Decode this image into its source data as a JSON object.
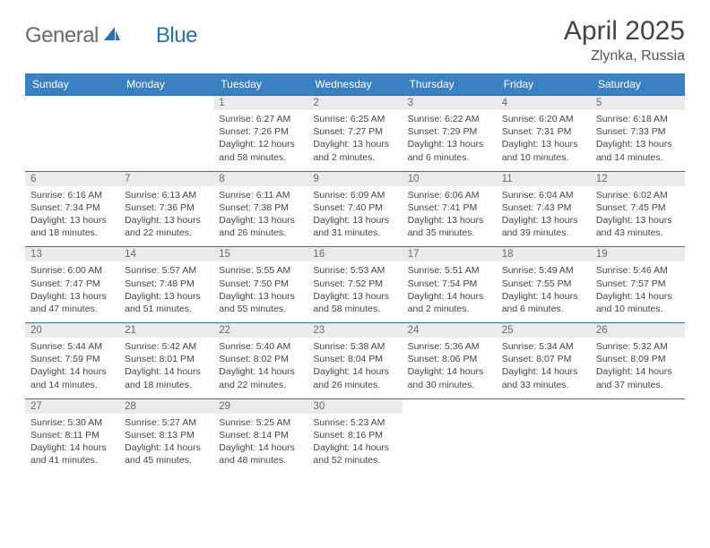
{
  "brand": {
    "part1": "General",
    "part2": "Blue"
  },
  "title": "April 2025",
  "location": "Zlynka, Russia",
  "colors": {
    "header_bg": "#3a81c4",
    "header_text": "#ffffff",
    "row_border": "#2f6fae",
    "daynum_bg": "#ebebeb",
    "daynum_text": "#6a6a6a",
    "body_text": "#444444",
    "page_bg": "#ffffff",
    "logo_gray": "#6a6a6a",
    "logo_blue": "#2f6fae"
  },
  "typography": {
    "title_fontsize": 30,
    "location_fontsize": 16,
    "dow_fontsize": 12,
    "daynum_fontsize": 11.5,
    "body_fontsize": 10.5,
    "logo_fontsize": 24
  },
  "days_of_week": [
    "Sunday",
    "Monday",
    "Tuesday",
    "Wednesday",
    "Thursday",
    "Friday",
    "Saturday"
  ],
  "weeks": [
    [
      null,
      null,
      {
        "n": "1",
        "sr": "Sunrise: 6:27 AM",
        "ss": "Sunset: 7:26 PM",
        "dl1": "Daylight: 12 hours",
        "dl2": "and 58 minutes."
      },
      {
        "n": "2",
        "sr": "Sunrise: 6:25 AM",
        "ss": "Sunset: 7:27 PM",
        "dl1": "Daylight: 13 hours",
        "dl2": "and 2 minutes."
      },
      {
        "n": "3",
        "sr": "Sunrise: 6:22 AM",
        "ss": "Sunset: 7:29 PM",
        "dl1": "Daylight: 13 hours",
        "dl2": "and 6 minutes."
      },
      {
        "n": "4",
        "sr": "Sunrise: 6:20 AM",
        "ss": "Sunset: 7:31 PM",
        "dl1": "Daylight: 13 hours",
        "dl2": "and 10 minutes."
      },
      {
        "n": "5",
        "sr": "Sunrise: 6:18 AM",
        "ss": "Sunset: 7:33 PM",
        "dl1": "Daylight: 13 hours",
        "dl2": "and 14 minutes."
      }
    ],
    [
      {
        "n": "6",
        "sr": "Sunrise: 6:16 AM",
        "ss": "Sunset: 7:34 PM",
        "dl1": "Daylight: 13 hours",
        "dl2": "and 18 minutes."
      },
      {
        "n": "7",
        "sr": "Sunrise: 6:13 AM",
        "ss": "Sunset: 7:36 PM",
        "dl1": "Daylight: 13 hours",
        "dl2": "and 22 minutes."
      },
      {
        "n": "8",
        "sr": "Sunrise: 6:11 AM",
        "ss": "Sunset: 7:38 PM",
        "dl1": "Daylight: 13 hours",
        "dl2": "and 26 minutes."
      },
      {
        "n": "9",
        "sr": "Sunrise: 6:09 AM",
        "ss": "Sunset: 7:40 PM",
        "dl1": "Daylight: 13 hours",
        "dl2": "and 31 minutes."
      },
      {
        "n": "10",
        "sr": "Sunrise: 6:06 AM",
        "ss": "Sunset: 7:41 PM",
        "dl1": "Daylight: 13 hours",
        "dl2": "and 35 minutes."
      },
      {
        "n": "11",
        "sr": "Sunrise: 6:04 AM",
        "ss": "Sunset: 7:43 PM",
        "dl1": "Daylight: 13 hours",
        "dl2": "and 39 minutes."
      },
      {
        "n": "12",
        "sr": "Sunrise: 6:02 AM",
        "ss": "Sunset: 7:45 PM",
        "dl1": "Daylight: 13 hours",
        "dl2": "and 43 minutes."
      }
    ],
    [
      {
        "n": "13",
        "sr": "Sunrise: 6:00 AM",
        "ss": "Sunset: 7:47 PM",
        "dl1": "Daylight: 13 hours",
        "dl2": "and 47 minutes."
      },
      {
        "n": "14",
        "sr": "Sunrise: 5:57 AM",
        "ss": "Sunset: 7:48 PM",
        "dl1": "Daylight: 13 hours",
        "dl2": "and 51 minutes."
      },
      {
        "n": "15",
        "sr": "Sunrise: 5:55 AM",
        "ss": "Sunset: 7:50 PM",
        "dl1": "Daylight: 13 hours",
        "dl2": "and 55 minutes."
      },
      {
        "n": "16",
        "sr": "Sunrise: 5:53 AM",
        "ss": "Sunset: 7:52 PM",
        "dl1": "Daylight: 13 hours",
        "dl2": "and 58 minutes."
      },
      {
        "n": "17",
        "sr": "Sunrise: 5:51 AM",
        "ss": "Sunset: 7:54 PM",
        "dl1": "Daylight: 14 hours",
        "dl2": "and 2 minutes."
      },
      {
        "n": "18",
        "sr": "Sunrise: 5:49 AM",
        "ss": "Sunset: 7:55 PM",
        "dl1": "Daylight: 14 hours",
        "dl2": "and 6 minutes."
      },
      {
        "n": "19",
        "sr": "Sunrise: 5:46 AM",
        "ss": "Sunset: 7:57 PM",
        "dl1": "Daylight: 14 hours",
        "dl2": "and 10 minutes."
      }
    ],
    [
      {
        "n": "20",
        "sr": "Sunrise: 5:44 AM",
        "ss": "Sunset: 7:59 PM",
        "dl1": "Daylight: 14 hours",
        "dl2": "and 14 minutes."
      },
      {
        "n": "21",
        "sr": "Sunrise: 5:42 AM",
        "ss": "Sunset: 8:01 PM",
        "dl1": "Daylight: 14 hours",
        "dl2": "and 18 minutes."
      },
      {
        "n": "22",
        "sr": "Sunrise: 5:40 AM",
        "ss": "Sunset: 8:02 PM",
        "dl1": "Daylight: 14 hours",
        "dl2": "and 22 minutes."
      },
      {
        "n": "23",
        "sr": "Sunrise: 5:38 AM",
        "ss": "Sunset: 8:04 PM",
        "dl1": "Daylight: 14 hours",
        "dl2": "and 26 minutes."
      },
      {
        "n": "24",
        "sr": "Sunrise: 5:36 AM",
        "ss": "Sunset: 8:06 PM",
        "dl1": "Daylight: 14 hours",
        "dl2": "and 30 minutes."
      },
      {
        "n": "25",
        "sr": "Sunrise: 5:34 AM",
        "ss": "Sunset: 8:07 PM",
        "dl1": "Daylight: 14 hours",
        "dl2": "and 33 minutes."
      },
      {
        "n": "26",
        "sr": "Sunrise: 5:32 AM",
        "ss": "Sunset: 8:09 PM",
        "dl1": "Daylight: 14 hours",
        "dl2": "and 37 minutes."
      }
    ],
    [
      {
        "n": "27",
        "sr": "Sunrise: 5:30 AM",
        "ss": "Sunset: 8:11 PM",
        "dl1": "Daylight: 14 hours",
        "dl2": "and 41 minutes."
      },
      {
        "n": "28",
        "sr": "Sunrise: 5:27 AM",
        "ss": "Sunset: 8:13 PM",
        "dl1": "Daylight: 14 hours",
        "dl2": "and 45 minutes."
      },
      {
        "n": "29",
        "sr": "Sunrise: 5:25 AM",
        "ss": "Sunset: 8:14 PM",
        "dl1": "Daylight: 14 hours",
        "dl2": "and 48 minutes."
      },
      {
        "n": "30",
        "sr": "Sunrise: 5:23 AM",
        "ss": "Sunset: 8:16 PM",
        "dl1": "Daylight: 14 hours",
        "dl2": "and 52 minutes."
      },
      null,
      null,
      null
    ]
  ]
}
